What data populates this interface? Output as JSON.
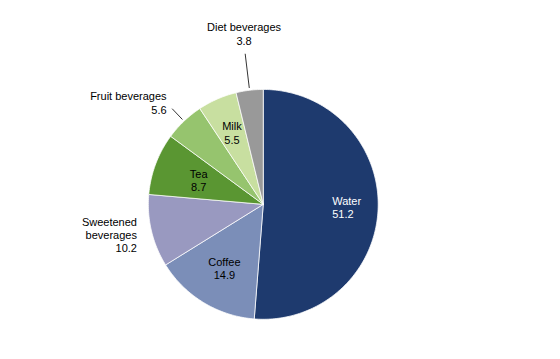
{
  "chart_data": {
    "type": "pie",
    "categories": [
      "Water",
      "Coffee",
      "Sweetened\nbeverages",
      "Tea",
      "Fruit beverages",
      "Milk",
      "Diet beverages"
    ],
    "values": [
      51.2,
      14.9,
      10.2,
      8.7,
      5.6,
      5.5,
      3.8
    ],
    "colors": [
      "#1e3a6e",
      "#7b8eb8",
      "#9999c0",
      "#5a9632",
      "#96c46e",
      "#c8dfa0",
      "#999999"
    ],
    "data_labels": true
  }
}
